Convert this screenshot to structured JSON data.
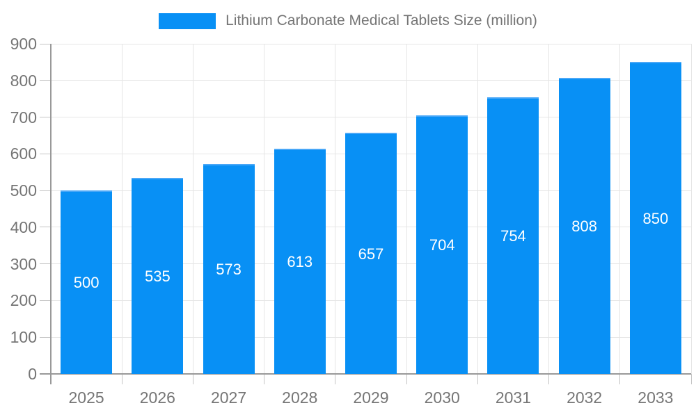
{
  "legend": {
    "label": "Lithium Carbonate Medical Tablets Size (million)"
  },
  "colors": {
    "bar": "#0890f5",
    "bar_top_edge": "#49a7f7",
    "grid": "#e5e5e5",
    "axis": "#999999",
    "tick_text": "#757575",
    "value_label_text": "#ffffff",
    "background": "#ffffff"
  },
  "chart_data": {
    "type": "bar",
    "title": "Lithium Carbonate Medical Tablets Size (million)",
    "categories": [
      "2025",
      "2026",
      "2027",
      "2028",
      "2029",
      "2030",
      "2031",
      "2032",
      "2033"
    ],
    "values": [
      500,
      535,
      573,
      613,
      657,
      704,
      754,
      808,
      850
    ],
    "xlabel": "",
    "ylabel": "",
    "ylim": [
      0,
      900
    ],
    "ytick_interval": 100,
    "grid": true,
    "legend_position": "top",
    "bar_labels_inside": true
  }
}
